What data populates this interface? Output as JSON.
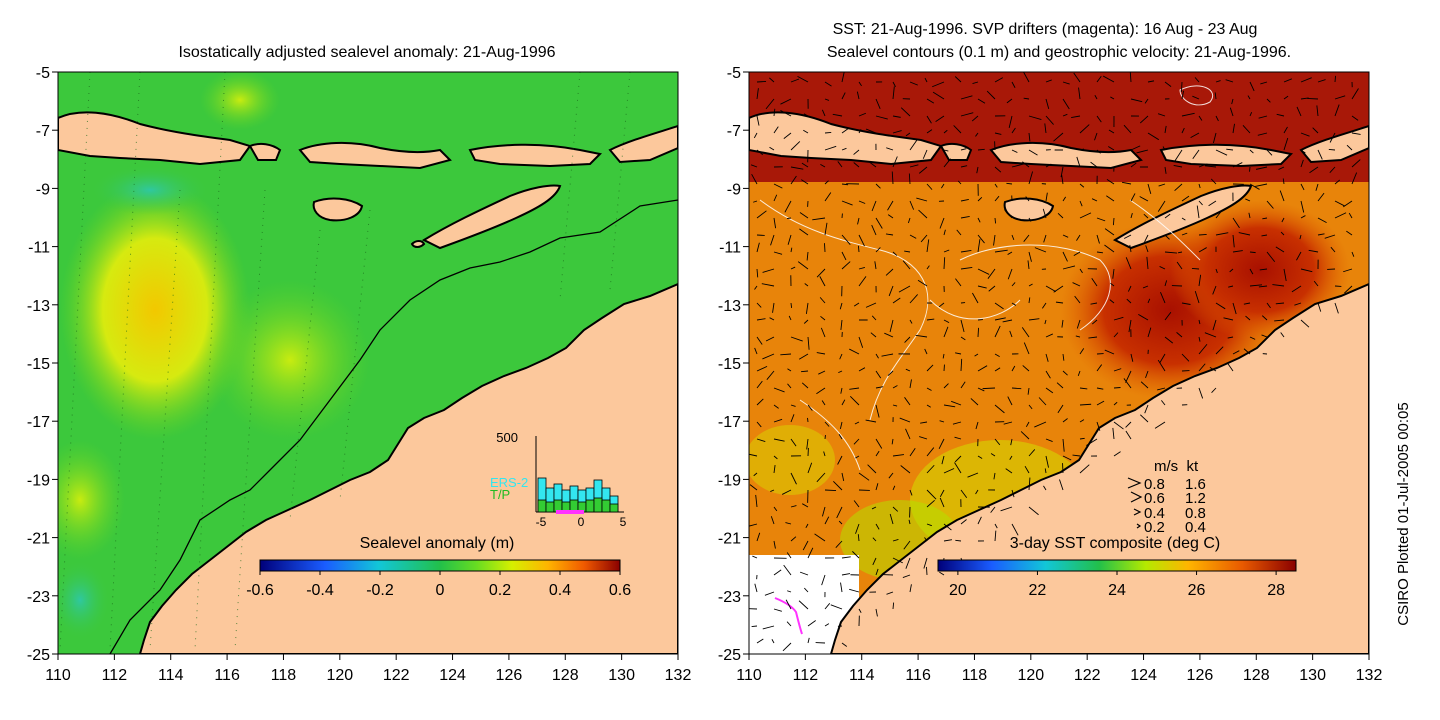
{
  "left_panel": {
    "title": "Isostatically adjusted sealevel anomaly: 21-Aug-1996",
    "colorbar_label": "Sealevel anomaly (m)",
    "colorbar_ticks": [
      "-0.6",
      "-0.4",
      "-0.2",
      "0",
      "0.2",
      "0.4",
      "0.6"
    ],
    "histogram": {
      "ymax_label": "500",
      "xticks": [
        "-5",
        "0",
        "5"
      ],
      "legend": [
        {
          "label": "ERS-2",
          "color": "#33e6f0"
        },
        {
          "label": "T/P",
          "color": "#33cc33"
        }
      ]
    }
  },
  "right_panel": {
    "title_line1": "SST: 21-Aug-1996. SVP drifters (magenta): 16 Aug - 23 Aug",
    "title_line2": "Sealevel contours (0.1 m) and geostrophic velocity: 21-Aug-1996.",
    "colorbar_label": "3-day SST composite (deg C)",
    "colorbar_ticks": [
      "20",
      "22",
      "24",
      "26",
      "28"
    ],
    "velocity_key": {
      "header": "m/s  kt",
      "rows": [
        {
          "ms": "0.8",
          "kt": "1.6"
        },
        {
          "ms": "0.6",
          "kt": "1.2"
        },
        {
          "ms": "0.4",
          "kt": "0.8"
        },
        {
          "ms": "0.2",
          "kt": "0.4"
        }
      ]
    }
  },
  "credit": "CSIRO Plotted 01-Jul-2005 00:05",
  "chart_data": [
    {
      "type": "heatmap",
      "title": "Isostatically adjusted sealevel anomaly: 21-Aug-1996",
      "xlim": [
        110,
        132
      ],
      "ylim": [
        -25,
        -5
      ],
      "xticks": [
        110,
        112,
        114,
        116,
        118,
        120,
        122,
        124,
        126,
        128,
        130,
        132
      ],
      "yticks": [
        -5,
        -7,
        -9,
        -11,
        -13,
        -15,
        -17,
        -19,
        -21,
        -23,
        -25
      ],
      "colorbar": {
        "label": "Sealevel anomaly (m)",
        "range": [
          -0.6,
          0.6
        ],
        "ticks": [
          -0.6,
          -0.4,
          -0.2,
          0,
          0.2,
          0.4,
          0.6
        ]
      },
      "inset_histogram": {
        "ylim": [
          0,
          500
        ],
        "xlim": [
          -5,
          5
        ],
        "series": [
          "ERS-2",
          "T/P"
        ]
      }
    },
    {
      "type": "heatmap",
      "title": "SST: 21-Aug-1996. SVP drifters (magenta): 16 Aug - 23 Aug",
      "xlim": [
        110,
        132
      ],
      "ylim": [
        -25,
        -5
      ],
      "xticks": [
        110,
        112,
        114,
        116,
        118,
        120,
        122,
        124,
        126,
        128,
        130,
        132
      ],
      "yticks": [
        -5,
        -7,
        -9,
        -11,
        -13,
        -15,
        -17,
        -19,
        -21,
        -23,
        -25
      ],
      "colorbar": {
        "label": "3-day SST composite (deg C)",
        "range": [
          19.5,
          28.5
        ],
        "ticks": [
          20,
          22,
          24,
          26,
          28
        ]
      },
      "velocity_key": [
        {
          "ms": 0.8,
          "kt": 1.6
        },
        {
          "ms": 0.6,
          "kt": 1.2
        },
        {
          "ms": 0.4,
          "kt": 0.8
        },
        {
          "ms": 0.2,
          "kt": 0.4
        }
      ]
    }
  ]
}
